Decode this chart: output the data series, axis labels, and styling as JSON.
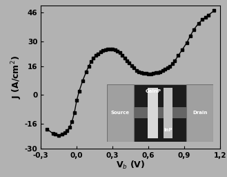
{
  "title": "",
  "xlabel": "V$_{b}$ (V)",
  "ylabel": "J (A/cm$^{2}$)",
  "xlim": [
    -0.3,
    1.2
  ],
  "ylim": [
    -30,
    50
  ],
  "xticks": [
    -0.3,
    0.0,
    0.3,
    0.6,
    0.9,
    1.2
  ],
  "yticks": [
    -30,
    -16,
    0,
    16,
    30,
    46
  ],
  "bg_color": "#b2b2b2",
  "line_color": "#000000",
  "curve_x": [
    -0.25,
    -0.2,
    -0.18,
    -0.15,
    -0.12,
    -0.1,
    -0.08,
    -0.06,
    -0.04,
    -0.02,
    0.0,
    0.02,
    0.05,
    0.08,
    0.1,
    0.12,
    0.14,
    0.16,
    0.18,
    0.2,
    0.22,
    0.24,
    0.26,
    0.28,
    0.3,
    0.32,
    0.34,
    0.36,
    0.38,
    0.4,
    0.42,
    0.44,
    0.46,
    0.48,
    0.5,
    0.52,
    0.54,
    0.56,
    0.58,
    0.6,
    0.62,
    0.64,
    0.66,
    0.68,
    0.7,
    0.72,
    0.74,
    0.76,
    0.78,
    0.8,
    0.82,
    0.85,
    0.88,
    0.92,
    0.95,
    0.98,
    1.02,
    1.05,
    1.08,
    1.1,
    1.15
  ],
  "curve_y": [
    -19.0,
    -21.5,
    -22.0,
    -22.5,
    -22.0,
    -21.0,
    -20.0,
    -18.0,
    -15.0,
    -10.0,
    -3.0,
    2.0,
    8.0,
    13.0,
    16.0,
    18.5,
    20.5,
    22.0,
    23.0,
    24.0,
    24.8,
    25.2,
    25.5,
    25.6,
    25.5,
    25.2,
    24.5,
    23.5,
    22.0,
    20.5,
    19.0,
    17.8,
    16.5,
    15.0,
    13.8,
    13.0,
    12.5,
    12.2,
    12.0,
    11.8,
    11.8,
    12.0,
    12.3,
    12.6,
    13.0,
    13.5,
    14.2,
    15.0,
    16.0,
    17.5,
    19.0,
    22.0,
    25.0,
    29.0,
    33.0,
    36.5,
    40.0,
    42.0,
    43.5,
    44.5,
    47.0
  ],
  "xtick_labels": [
    "-0,3",
    "0,0",
    "0,3",
    "0,6",
    "0,9",
    "1,2"
  ],
  "ytick_labels": [
    "-30",
    "-16",
    "0",
    "16",
    "30",
    "46"
  ],
  "inset_label_source": "Source",
  "inset_label_gainp": "GaInP",
  "inset_label_inp": "InP",
  "inset_label_drain": "Drain"
}
